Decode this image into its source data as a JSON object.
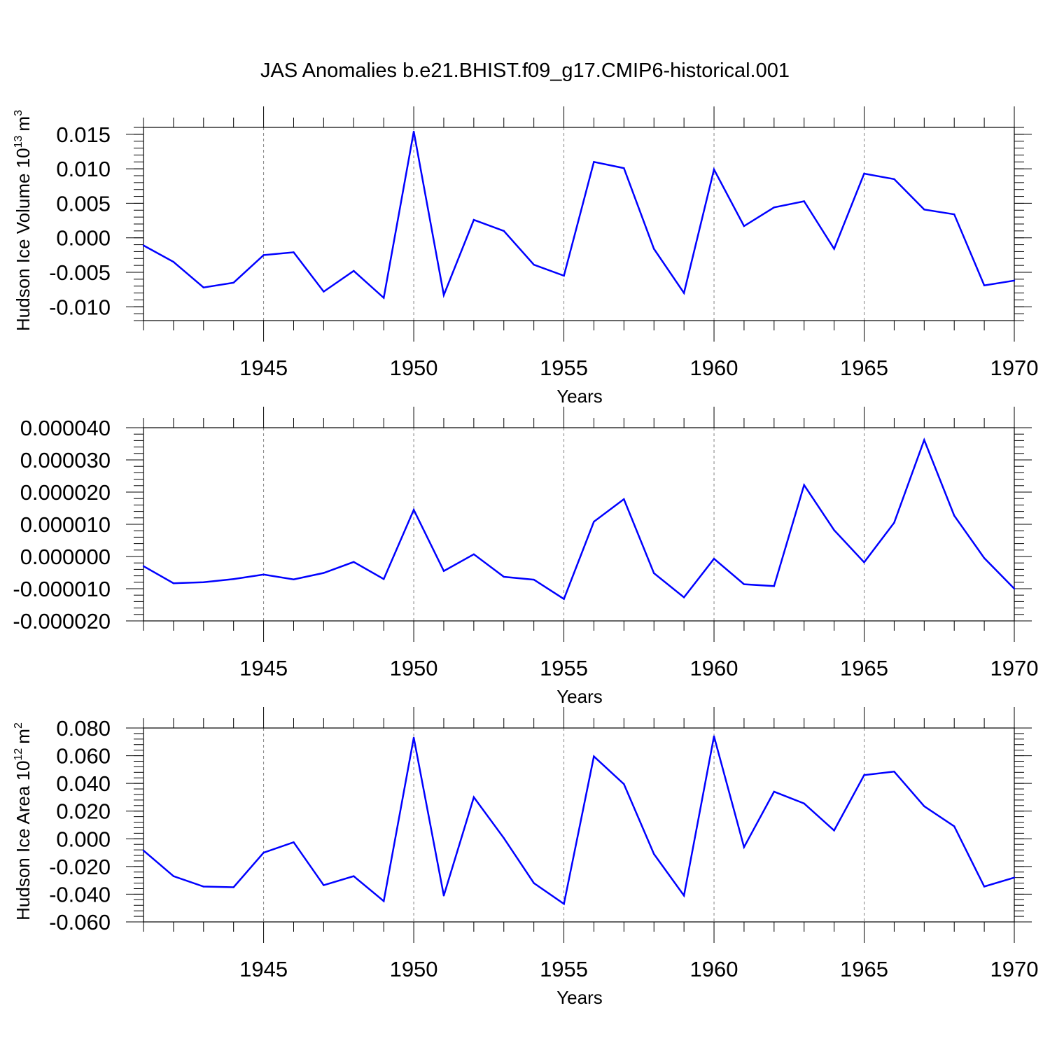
{
  "title": "JAS Anomalies b.e21.BHIST.f09_g17.CMIP6-historical.001",
  "colors": {
    "line": "#0000ff",
    "grid": "#808080",
    "axis": "#000000"
  },
  "chart_data": [
    {
      "type": "line",
      "ylabel": "Hudson Ice Volume 10",
      "ylabel_sup": "13",
      "ylabel_unit": "m",
      "ylabel_unit_sup": "3",
      "xlabel": "Years",
      "xlim": [
        1941,
        1970
      ],
      "ylim": [
        -0.012,
        0.016
      ],
      "yticks": [
        0.015,
        0.01,
        0.005,
        0.0,
        -0.005,
        -0.01
      ],
      "yticklabels": [
        "0.015",
        "0.010",
        "0.005",
        "0.000",
        "-0.005",
        "-0.010"
      ],
      "xticks": [
        1945,
        1950,
        1955,
        1960,
        1965,
        1970
      ],
      "xticklabels": [
        "1945",
        "1950",
        "1955",
        "1960",
        "1965",
        "1970"
      ],
      "grid": "vertical-dashed",
      "x": [
        1941,
        1942,
        1943,
        1944,
        1945,
        1946,
        1947,
        1948,
        1949,
        1950,
        1951,
        1952,
        1953,
        1954,
        1955,
        1956,
        1957,
        1958,
        1959,
        1960,
        1961,
        1962,
        1963,
        1964,
        1965,
        1966,
        1967,
        1968,
        1969,
        1970
      ],
      "values": [
        -0.0011,
        -0.0035,
        -0.0072,
        -0.0065,
        -0.0025,
        -0.0021,
        -0.0078,
        -0.0048,
        -0.0087,
        0.0154,
        -0.0083,
        0.0026,
        0.001,
        -0.0039,
        -0.0055,
        0.011,
        0.0101,
        -0.0016,
        -0.008,
        0.0099,
        0.0017,
        0.0044,
        0.0053,
        -0.0016,
        0.0093,
        0.0085,
        0.0041,
        0.0034,
        -0.0069,
        -0.0062
      ]
    },
    {
      "type": "line",
      "ylabel": "",
      "xlabel": "Years",
      "xlim": [
        1941,
        1970
      ],
      "ylim": [
        -2e-05,
        4e-05
      ],
      "yticks": [
        4e-05,
        3e-05,
        2e-05,
        1e-05,
        0.0,
        -1e-05,
        -2e-05
      ],
      "yticklabels": [
        "0.000040",
        "0.000030",
        "0.000020",
        "0.000010",
        "0.000000",
        "-0.000010",
        "-0.000020"
      ],
      "xticks": [
        1945,
        1950,
        1955,
        1960,
        1965,
        1970
      ],
      "xticklabels": [
        "1945",
        "1950",
        "1955",
        "1960",
        "1965",
        "1970"
      ],
      "grid": "vertical-dashed",
      "x": [
        1941,
        1942,
        1943,
        1944,
        1945,
        1946,
        1947,
        1948,
        1949,
        1950,
        1951,
        1952,
        1953,
        1954,
        1955,
        1956,
        1957,
        1958,
        1959,
        1960,
        1961,
        1962,
        1963,
        1964,
        1965,
        1966,
        1967,
        1968,
        1969,
        1970
      ],
      "values": [
        -3e-06,
        -8.3e-06,
        -8e-06,
        -7e-06,
        -5.6e-06,
        -7.1e-06,
        -5.1e-06,
        -1.7e-06,
        -7e-06,
        1.45e-05,
        -4.5e-06,
        7e-07,
        -6.3e-06,
        -7.2e-06,
        -1.32e-05,
        1.08e-05,
        1.78e-05,
        -5.2e-06,
        -1.27e-05,
        -7e-07,
        -8.6e-06,
        -9.2e-06,
        2.22e-05,
        8.2e-06,
        -1.8e-06,
        1.05e-05,
        3.62e-05,
        1.27e-05,
        -5e-07,
        -1e-05
      ]
    },
    {
      "type": "line",
      "ylabel": "Hudson Ice Area 10",
      "ylabel_sup": "12",
      "ylabel_unit": "m",
      "ylabel_unit_sup": "2",
      "xlabel": "Years",
      "xlim": [
        1941,
        1970
      ],
      "ylim": [
        -0.06,
        0.08
      ],
      "yticks": [
        0.08,
        0.06,
        0.04,
        0.02,
        0.0,
        -0.02,
        -0.04,
        -0.06
      ],
      "yticklabels": [
        "0.080",
        "0.060",
        "0.040",
        "0.020",
        "0.000",
        "-0.020",
        "-0.040",
        "-0.060"
      ],
      "xticks": [
        1945,
        1950,
        1955,
        1960,
        1965,
        1970
      ],
      "xticklabels": [
        "1945",
        "1950",
        "1955",
        "1960",
        "1965",
        "1970"
      ],
      "grid": "vertical-dashed",
      "x": [
        1941,
        1942,
        1943,
        1944,
        1945,
        1946,
        1947,
        1948,
        1949,
        1950,
        1951,
        1952,
        1953,
        1954,
        1955,
        1956,
        1957,
        1958,
        1959,
        1960,
        1961,
        1962,
        1963,
        1964,
        1965,
        1966,
        1967,
        1968,
        1969,
        1970
      ],
      "values": [
        -0.0085,
        -0.027,
        -0.0345,
        -0.035,
        -0.01,
        -0.0025,
        -0.0335,
        -0.027,
        -0.045,
        0.073,
        -0.041,
        0.03,
        0.0005,
        -0.032,
        -0.047,
        0.0595,
        0.0395,
        -0.011,
        -0.041,
        0.074,
        -0.006,
        0.034,
        0.0255,
        0.006,
        0.046,
        0.0485,
        0.0235,
        0.009,
        -0.0345,
        -0.028
      ]
    }
  ]
}
